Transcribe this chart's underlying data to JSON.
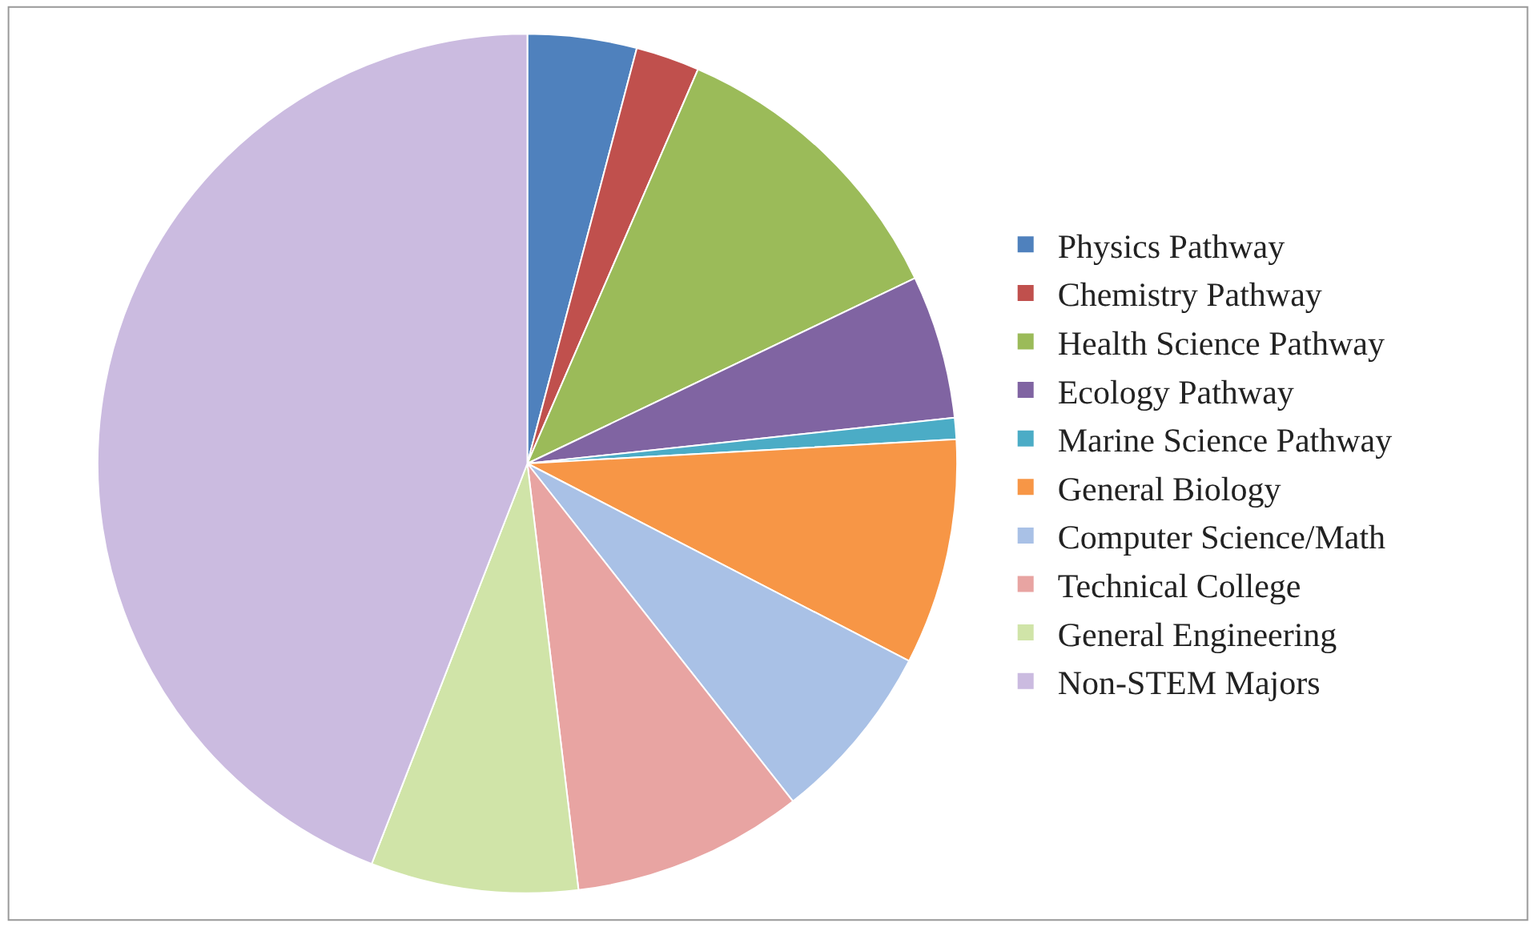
{
  "chart_data": {
    "type": "pie",
    "categories": [
      "Physics Pathway",
      "Chemistry Pathway",
      "Health Science Pathway",
      "Ecology Pathway",
      "Marine Science Pathway",
      "General Biology",
      "Computer Science/Math",
      "Technical College",
      "General Engineering",
      "Non-STEM Majors"
    ],
    "values": [
      4.1,
      2.4,
      11.4,
      5.4,
      0.8,
      8.5,
      6.8,
      8.7,
      7.8,
      44.1
    ],
    "colors": [
      "#4f81bd",
      "#c0504d",
      "#9bbb59",
      "#8064a2",
      "#4bacc6",
      "#f79646",
      "#a9c1e6",
      "#e8a4a2",
      "#d0e4a8",
      "#cbbbe0"
    ],
    "legend": "right"
  }
}
